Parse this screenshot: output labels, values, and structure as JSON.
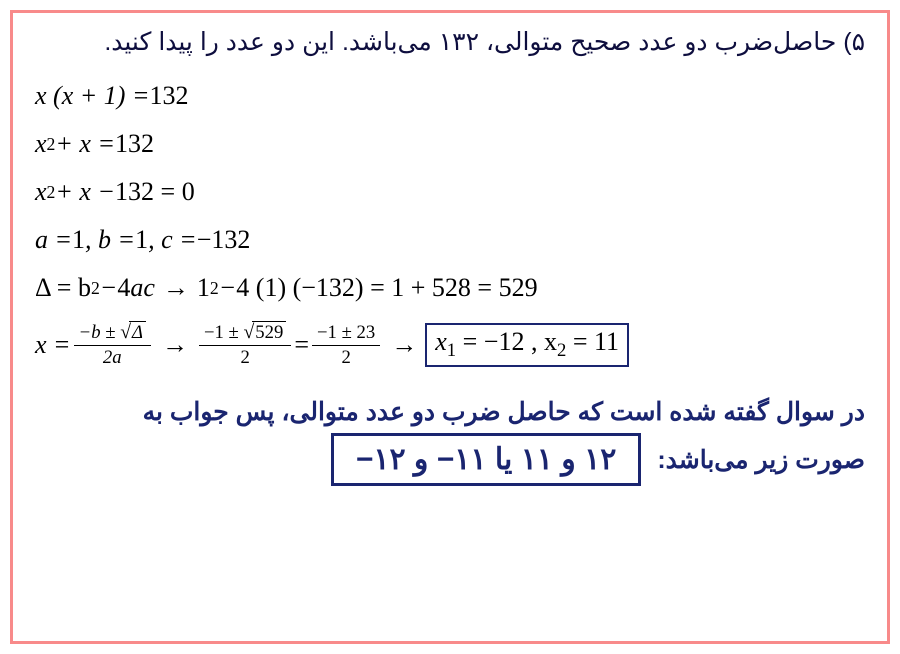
{
  "container": {
    "border_color": "#f88a8a",
    "background": "#ffffff"
  },
  "question": {
    "text": "۵) حاصل‌ضرب دو عدد صحیح متوالی، ۱۳۲ می‌باشد. این دو عدد را پیدا کنید."
  },
  "lines": {
    "l1_a": "x (x + 1) = ",
    "l1_b": "132",
    "l2_a": "x",
    "l2_b": " + x = ",
    "l2_c": "132",
    "l3_a": "x",
    "l3_b": " + x − ",
    "l3_c": "132 = 0",
    "l4_a": "a = ",
    "l4_b": "1",
    "l4_c": " , b = ",
    "l4_d": "1",
    "l4_e": " , c = ",
    "l4_f": "−132",
    "l5_a": "Δ = b",
    "l5_b": " − ",
    "l5_c": "4",
    "l5_d": "ac",
    "l5_e": "1",
    "l5_f": " − ",
    "l5_g": "4 (1) (−132) = 1 + 528 = 529",
    "l6_a": "x = ",
    "l6_frac1_num_a": "−b ± ",
    "l6_frac1_num_sqrt": "Δ",
    "l6_frac1_den": "2a",
    "l6_frac2_num_a": "−1 ± ",
    "l6_frac2_num_sqrt": "529",
    "l6_frac2_den": "2",
    "l6_mid": " = ",
    "l6_frac3_num": "−1 ± 23",
    "l6_frac3_den": "2",
    "l6_box_a": "x",
    "l6_box_b": " = −12 , x",
    "l6_box_c": " = 11",
    "sup2": "2",
    "sub1": "1",
    "sub2": "2",
    "arrow": "→"
  },
  "conclusion": {
    "line1": "در سوال گفته شده است که حاصل ضرب دو عدد متوالی، پس جواب به",
    "line2": "صورت زیر می‌باشد:",
    "answer": "۱۲ و ۱۱ یا ۱۱− و ۱۲−"
  },
  "colors": {
    "answer_border": "#1a2570",
    "answer_text": "#1a2570",
    "question_text": "#0e0e3e"
  }
}
